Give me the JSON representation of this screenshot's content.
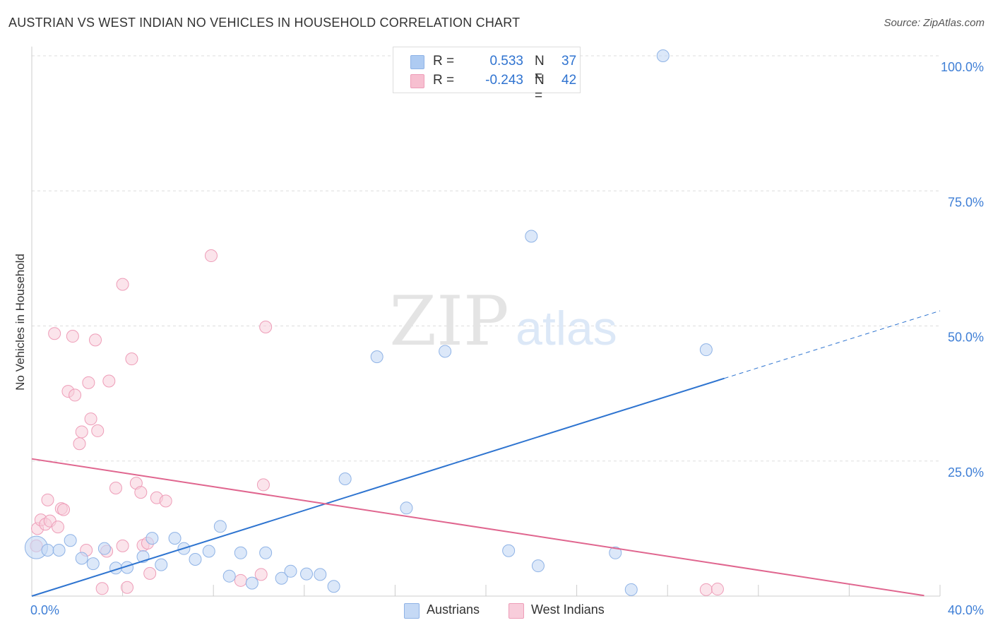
{
  "title": "AUSTRIAN VS WEST INDIAN NO VEHICLES IN HOUSEHOLD CORRELATION CHART",
  "source": "Source: ZipAtlas.com",
  "watermark": {
    "zip": "ZIP",
    "atlas": "atlas"
  },
  "legend_top": {
    "rows": [
      {
        "label": "R =",
        "r": "0.533",
        "n_label": "N =",
        "n": "37",
        "color": "#aecbf2"
      },
      {
        "label": "R =",
        "r": "-0.243",
        "n_label": "N =",
        "n": "42",
        "color": "#f7bfd0"
      }
    ]
  },
  "legend_bottom": [
    {
      "label": "Austrians",
      "color": "#aecbf2"
    },
    {
      "label": "West Indians",
      "color": "#f7bfd0"
    }
  ],
  "colors": {
    "austrian_fill": "#c5d9f5",
    "austrian_stroke": "#8fb3e6",
    "austrian_line": "#2e74d0",
    "westindian_fill": "#f8cddb",
    "westindian_stroke": "#ee9db8",
    "westindian_line": "#e0668f",
    "tick_label": "#3f7fd6",
    "grid": "#dddddd"
  },
  "chart_data": {
    "type": "scatter",
    "title": "AUSTRIAN VS WEST INDIAN NO VEHICLES IN HOUSEHOLD CORRELATION CHART",
    "xlabel": "",
    "ylabel": "No Vehicles in Household",
    "xlim": [
      0,
      40
    ],
    "ylim": [
      0,
      100
    ],
    "x_tick_labels": [
      {
        "value": 0,
        "label": "0.0%"
      },
      {
        "value": 40,
        "label": "40.0%"
      }
    ],
    "y_tick_labels": [
      {
        "value": 100,
        "label": "100.0%"
      },
      {
        "value": 75,
        "label": "75.0%"
      },
      {
        "value": 50,
        "label": "50.0%"
      },
      {
        "value": 25,
        "label": "25.0%"
      }
    ],
    "grid": true,
    "series": [
      {
        "name": "Austrians",
        "r": 0.533,
        "n": 37,
        "trend": {
          "x0": 0,
          "y0": 0,
          "x1": 30.5,
          "y1": 40.3,
          "x_dash_end": 40,
          "y_dash_end": 52.8
        },
        "points": [
          {
            "x": 0.2,
            "y": 9.0,
            "big": true
          },
          {
            "x": 0.7,
            "y": 8.5
          },
          {
            "x": 1.2,
            "y": 8.5
          },
          {
            "x": 1.7,
            "y": 10.3
          },
          {
            "x": 2.2,
            "y": 7.0
          },
          {
            "x": 2.7,
            "y": 6.0
          },
          {
            "x": 3.2,
            "y": 8.8
          },
          {
            "x": 3.7,
            "y": 5.2
          },
          {
            "x": 4.2,
            "y": 5.3
          },
          {
            "x": 4.9,
            "y": 7.3
          },
          {
            "x": 5.3,
            "y": 10.7
          },
          {
            "x": 5.7,
            "y": 5.8
          },
          {
            "x": 6.3,
            "y": 10.7
          },
          {
            "x": 6.7,
            "y": 8.8
          },
          {
            "x": 7.2,
            "y": 6.8
          },
          {
            "x": 7.8,
            "y": 8.3
          },
          {
            "x": 8.3,
            "y": 12.9
          },
          {
            "x": 8.7,
            "y": 3.7
          },
          {
            "x": 9.2,
            "y": 8.0
          },
          {
            "x": 9.7,
            "y": 2.4
          },
          {
            "x": 10.3,
            "y": 8.0
          },
          {
            "x": 11.0,
            "y": 3.3
          },
          {
            "x": 11.4,
            "y": 4.6
          },
          {
            "x": 12.1,
            "y": 4.1
          },
          {
            "x": 12.7,
            "y": 4.0
          },
          {
            "x": 13.3,
            "y": 1.8
          },
          {
            "x": 13.8,
            "y": 21.7
          },
          {
            "x": 15.2,
            "y": 44.3
          },
          {
            "x": 16.5,
            "y": 16.3
          },
          {
            "x": 18.2,
            "y": 45.3
          },
          {
            "x": 21.0,
            "y": 8.4
          },
          {
            "x": 22.3,
            "y": 5.6
          },
          {
            "x": 22.0,
            "y": 66.6
          },
          {
            "x": 25.7,
            "y": 8.0
          },
          {
            "x": 26.4,
            "y": 1.2
          },
          {
            "x": 27.8,
            "y": 100.0
          },
          {
            "x": 29.7,
            "y": 45.6
          }
        ]
      },
      {
        "name": "West Indians",
        "r": -0.243,
        "n": 42,
        "trend": {
          "x0": 0,
          "y0": 25.4,
          "x1": 39.3,
          "y1": 0.1
        },
        "points": [
          {
            "x": 0.2,
            "y": 9.3
          },
          {
            "x": 0.25,
            "y": 12.5
          },
          {
            "x": 0.4,
            "y": 14.1
          },
          {
            "x": 0.6,
            "y": 13.3
          },
          {
            "x": 0.7,
            "y": 17.8
          },
          {
            "x": 0.8,
            "y": 13.9
          },
          {
            "x": 1.0,
            "y": 48.6
          },
          {
            "x": 1.15,
            "y": 12.8
          },
          {
            "x": 1.3,
            "y": 16.2
          },
          {
            "x": 1.4,
            "y": 16.0
          },
          {
            "x": 1.6,
            "y": 37.9
          },
          {
            "x": 1.8,
            "y": 48.1
          },
          {
            "x": 1.9,
            "y": 37.2
          },
          {
            "x": 2.1,
            "y": 28.2
          },
          {
            "x": 2.2,
            "y": 30.4
          },
          {
            "x": 2.4,
            "y": 8.5
          },
          {
            "x": 2.5,
            "y": 39.5
          },
          {
            "x": 2.6,
            "y": 32.8
          },
          {
            "x": 2.8,
            "y": 47.4
          },
          {
            "x": 2.9,
            "y": 30.6
          },
          {
            "x": 3.1,
            "y": 1.4
          },
          {
            "x": 3.3,
            "y": 8.3
          },
          {
            "x": 3.4,
            "y": 39.8
          },
          {
            "x": 3.7,
            "y": 20.0
          },
          {
            "x": 4.0,
            "y": 9.3
          },
          {
            "x": 4.0,
            "y": 57.7
          },
          {
            "x": 4.2,
            "y": 1.6
          },
          {
            "x": 4.4,
            "y": 43.9
          },
          {
            "x": 4.6,
            "y": 20.9
          },
          {
            "x": 4.8,
            "y": 19.2
          },
          {
            "x": 4.9,
            "y": 9.4
          },
          {
            "x": 5.1,
            "y": 9.8
          },
          {
            "x": 5.2,
            "y": 4.2
          },
          {
            "x": 5.5,
            "y": 18.2
          },
          {
            "x": 5.9,
            "y": 17.6
          },
          {
            "x": 7.9,
            "y": 63.0
          },
          {
            "x": 9.2,
            "y": 2.9
          },
          {
            "x": 10.1,
            "y": 4.0
          },
          {
            "x": 10.2,
            "y": 20.6
          },
          {
            "x": 10.3,
            "y": 49.8
          },
          {
            "x": 29.7,
            "y": 1.2
          },
          {
            "x": 30.2,
            "y": 1.3
          }
        ]
      }
    ]
  }
}
